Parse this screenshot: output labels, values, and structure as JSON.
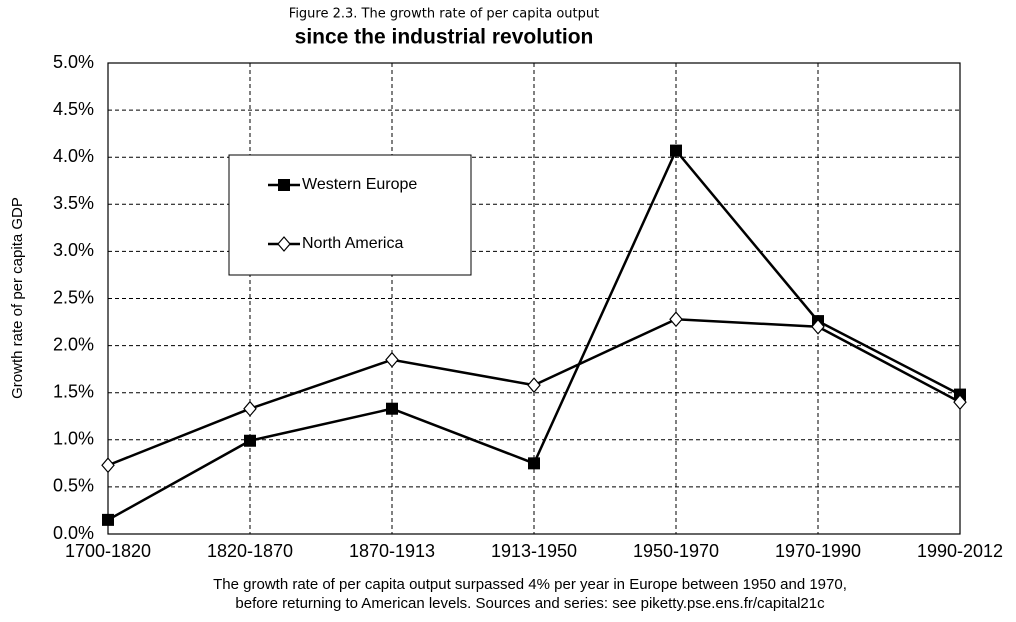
{
  "chart_data": {
    "type": "line",
    "title": "Figure 2.3. The growth rate of per capita output",
    "subtitle": "since the industrial revolution",
    "y_label": "Growth rate of per capita GDP",
    "caption": [
      "The growth rate of per capita output surpassed 4% per year in Europe between 1950 and 1970,",
      "before returning to American levels. Sources and series: see piketty.pse.ens.fr/capital21c"
    ],
    "categories": [
      "1700-1820",
      "1820-1870",
      "1870-1913",
      "1913-1950",
      "1950-1970",
      "1970-1990",
      "1990-2012"
    ],
    "series": [
      {
        "name": "Western Europe",
        "color": "#000000",
        "marker": "square",
        "values": [
          0.15,
          0.99,
          1.33,
          0.75,
          4.07,
          2.26,
          1.48
        ]
      },
      {
        "name": "North America",
        "color": "#000000",
        "marker": "diamond",
        "values": [
          0.73,
          1.33,
          1.85,
          1.58,
          2.28,
          2.2,
          1.4
        ]
      }
    ],
    "ylim": [
      0,
      5
    ],
    "yticks": [
      {
        "value": 0,
        "label": "0.0%"
      },
      {
        "value": 0.5,
        "label": "0.5%"
      },
      {
        "value": 1,
        "label": "1.0%"
      },
      {
        "value": 1.5,
        "label": "1.5%"
      },
      {
        "value": 2,
        "label": "2.0%"
      },
      {
        "value": 2.5,
        "label": "2.5%"
      },
      {
        "value": 3,
        "label": "3.0%"
      },
      {
        "value": 3.5,
        "label": "3.5%"
      },
      {
        "value": 4,
        "label": "4.0%"
      },
      {
        "value": 4.5,
        "label": "4.5%"
      },
      {
        "value": 5,
        "label": "5.0%"
      }
    ],
    "grid": true
  }
}
